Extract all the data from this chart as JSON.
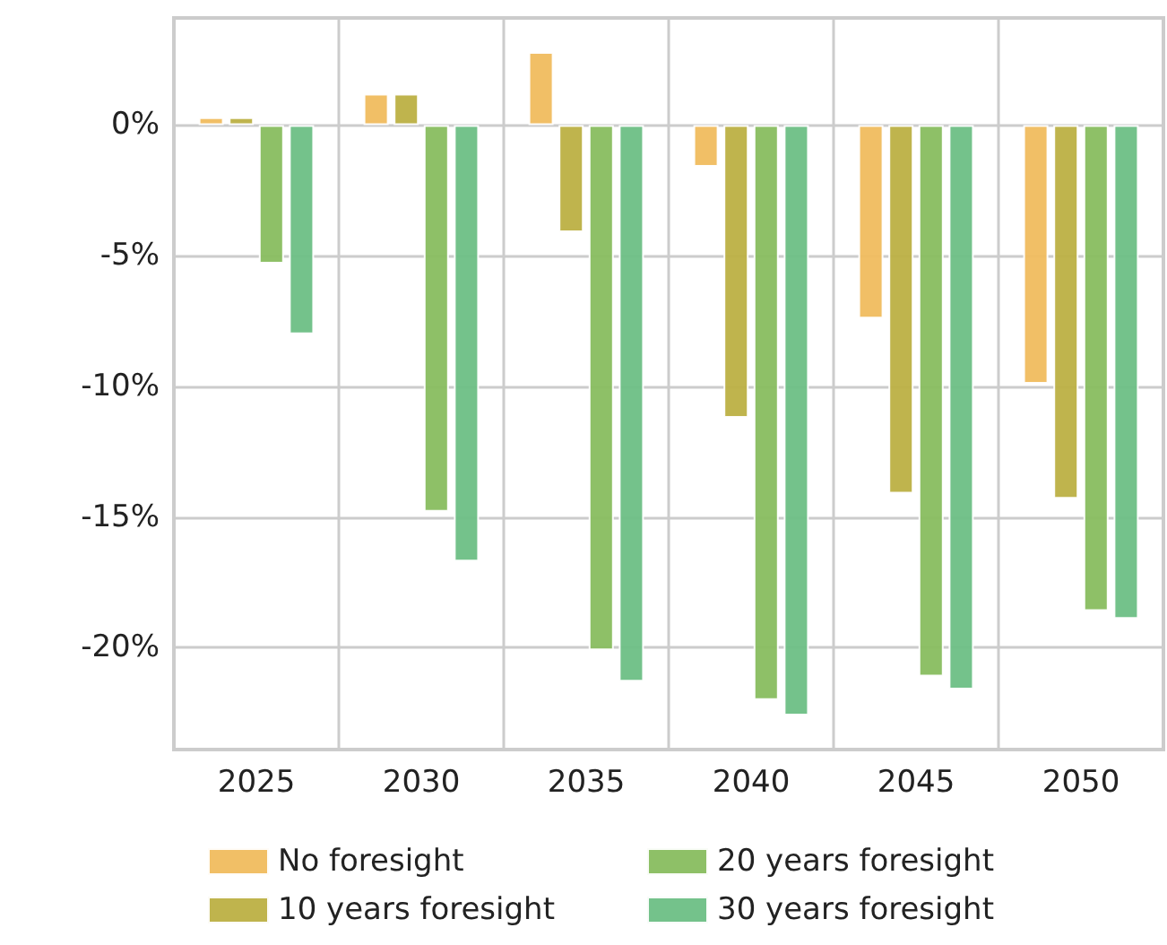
{
  "chart_data": {
    "type": "bar",
    "categories": [
      "2025",
      "2030",
      "2035",
      "2040",
      "2045",
      "2050"
    ],
    "series": [
      {
        "name": "No foresight",
        "color": "#f0bc5e",
        "values": [
          0.3,
          1.2,
          2.8,
          -1.6,
          -7.4,
          -9.9
        ]
      },
      {
        "name": "10 years foresight",
        "color": "#bcb043",
        "values": [
          0.3,
          1.2,
          -4.1,
          -11.2,
          -14.1,
          -14.3
        ]
      },
      {
        "name": "20 years foresight",
        "color": "#88bd5f",
        "values": [
          -5.3,
          -14.8,
          -20.1,
          -22.0,
          -21.1,
          -18.6
        ]
      },
      {
        "name": "30 years foresight",
        "color": "#6dbf85",
        "values": [
          -8.0,
          -16.7,
          -21.3,
          -22.6,
          -21.6,
          -18.9
        ]
      }
    ],
    "ylim": [
      -23.9,
      4.1
    ],
    "yticks": [
      {
        "value": 0,
        "label": "0%"
      },
      {
        "value": -5,
        "label": "-5%"
      },
      {
        "value": -10,
        "label": "-10%"
      },
      {
        "value": -15,
        "label": "-15%"
      },
      {
        "value": -20,
        "label": "-20%"
      }
    ],
    "grid": true,
    "legend": "bottom"
  }
}
